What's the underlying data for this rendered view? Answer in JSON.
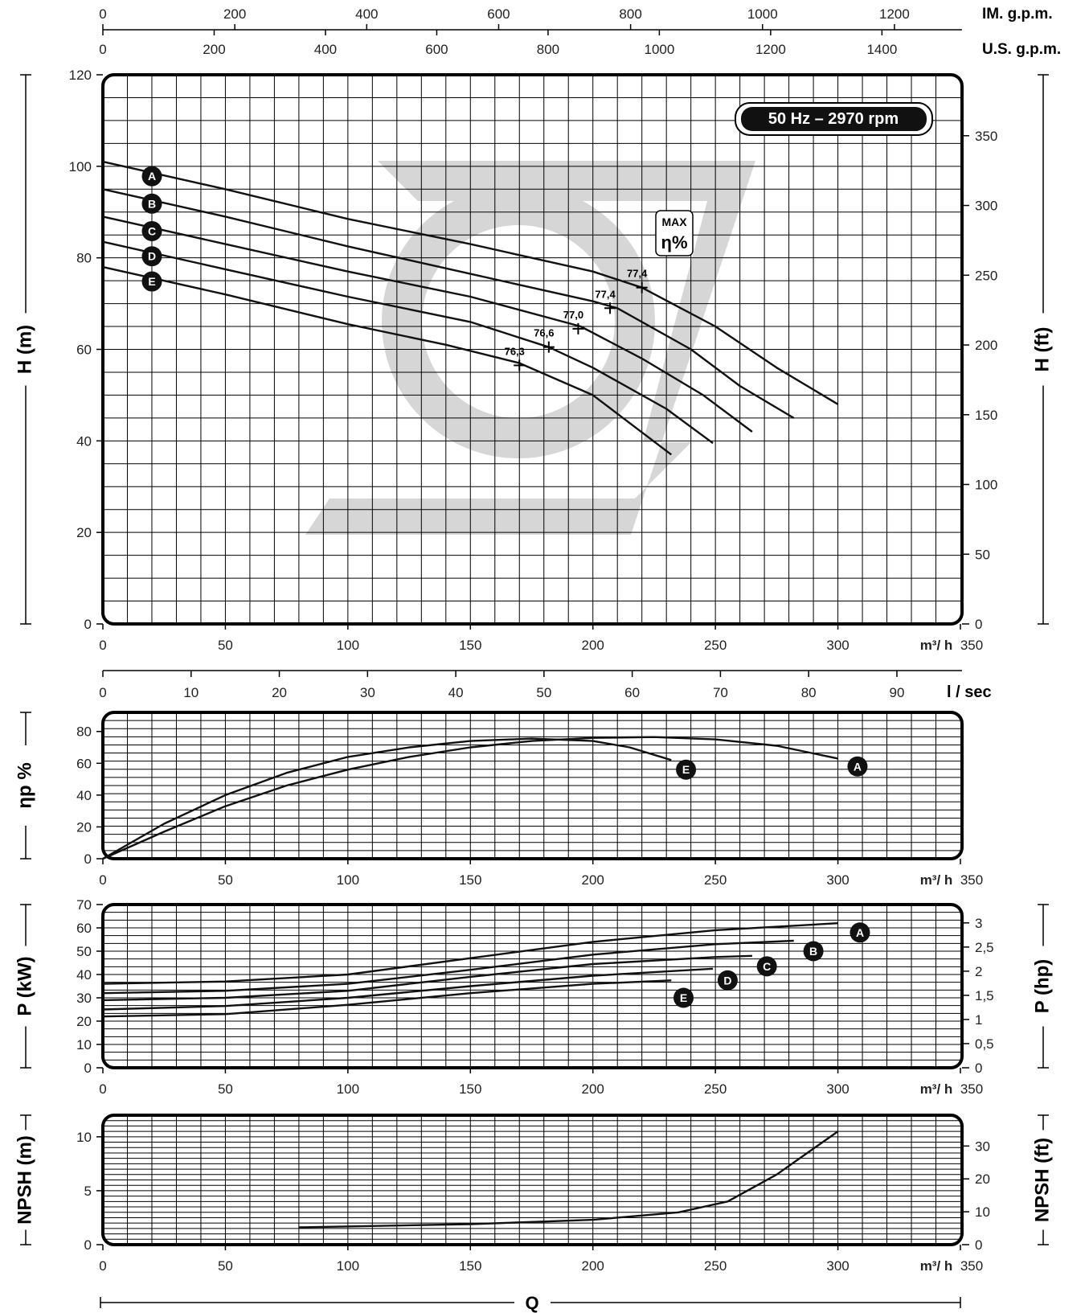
{
  "chart_data": {
    "type": "line",
    "title": "50 Hz – 2970 rpm",
    "top_scales": [
      {
        "unit": "IM. g.p.m.",
        "ticks": [
          "0",
          "200",
          "400",
          "600",
          "800",
          "1000",
          "1200"
        ],
        "values": [
          0,
          200,
          400,
          600,
          800,
          1000,
          1200
        ],
        "max": 1300
      },
      {
        "unit": "U.S. g.p.m.",
        "ticks": [
          "0",
          "200",
          "400",
          "600",
          "800",
          "1000",
          "1200",
          "1400"
        ],
        "values": [
          0,
          200,
          400,
          600,
          800,
          1000,
          1200,
          1400
        ],
        "max": 1541
      }
    ],
    "x": {
      "unit_label": "m³/ h",
      "ticks": [
        "0",
        "50",
        "100",
        "150",
        "200",
        "250",
        "300",
        "350"
      ],
      "values": [
        0,
        50,
        100,
        150,
        200,
        250,
        300,
        350
      ],
      "lim": [
        0,
        350
      ]
    },
    "lsec": {
      "unit_label": "l / sec",
      "ticks": [
        "0",
        "10",
        "20",
        "30",
        "40",
        "50",
        "60",
        "70",
        "80",
        "90"
      ],
      "values": [
        0,
        10,
        20,
        30,
        40,
        50,
        60,
        70,
        80,
        90
      ],
      "max": 97.2
    },
    "q_label": "Q",
    "head_panel": {
      "ylabel": "H (m)",
      "ylabel_right": "H (ft)",
      "ylim": [
        0,
        120
      ],
      "yticks": [
        "0",
        "20",
        "40",
        "60",
        "80",
        "100",
        "120"
      ],
      "yvalues": [
        0,
        20,
        40,
        60,
        80,
        100,
        120
      ],
      "right_ticks": [
        "0",
        "50",
        "100",
        "150",
        "200",
        "250",
        "300",
        "350"
      ],
      "right_values": [
        0,
        50,
        100,
        150,
        200,
        250,
        300,
        350
      ],
      "right_max": 393.7,
      "max_eff_label": [
        "MAX",
        "η%"
      ],
      "series": [
        {
          "name": "A",
          "x": [
            0,
            50,
            100,
            150,
            200,
            220,
            250,
            275,
            300
          ],
          "y": [
            101,
            95,
            88.5,
            83,
            77,
            73.5,
            65,
            56,
            48
          ]
        },
        {
          "name": "B",
          "x": [
            0,
            50,
            100,
            150,
            200,
            210,
            240,
            260,
            282
          ],
          "y": [
            95,
            89,
            82.5,
            76.5,
            70.5,
            69,
            60,
            52,
            45
          ]
        },
        {
          "name": "C",
          "x": [
            0,
            50,
            100,
            150,
            195,
            220,
            245,
            265
          ],
          "y": [
            89,
            83,
            77,
            71.5,
            65,
            58,
            50,
            42
          ]
        },
        {
          "name": "D",
          "x": [
            0,
            50,
            100,
            150,
            182,
            200,
            230,
            249
          ],
          "y": [
            83.5,
            77.5,
            71.5,
            66,
            60.5,
            56,
            47,
            39.5
          ]
        },
        {
          "name": "E",
          "x": [
            0,
            50,
            100,
            140,
            170,
            200,
            232
          ],
          "y": [
            78,
            72,
            65.5,
            61,
            57,
            50,
            37
          ]
        }
      ],
      "bep_points": [
        {
          "x": 220,
          "y": 73.5,
          "label": "77,4"
        },
        {
          "x": 207,
          "y": 69,
          "label": "77,4"
        },
        {
          "x": 194,
          "y": 64.5,
          "label": "77,0"
        },
        {
          "x": 182,
          "y": 60.5,
          "label": "76,6"
        },
        {
          "x": 170,
          "y": 56.5,
          "label": "76,3"
        }
      ]
    },
    "efficiency_panel": {
      "ylabel": "ηp %",
      "ylim": [
        0,
        92
      ],
      "yticks": [
        "0",
        "20",
        "40",
        "60",
        "80"
      ],
      "yvalues": [
        0,
        20,
        40,
        60,
        80
      ],
      "series": [
        {
          "name": "A",
          "x": [
            0,
            25,
            50,
            75,
            100,
            125,
            150,
            175,
            200,
            225,
            250,
            275,
            300
          ],
          "y": [
            0,
            17,
            33,
            46,
            56,
            64,
            70,
            74,
            76,
            76.5,
            75,
            71,
            63
          ]
        },
        {
          "name": "E",
          "x": [
            0,
            25,
            50,
            75,
            100,
            125,
            150,
            175,
            200,
            215,
            232
          ],
          "y": [
            0,
            22,
            40,
            54,
            64,
            70,
            74,
            75.5,
            74,
            70,
            62
          ]
        }
      ]
    },
    "power_panel": {
      "ylabel": "P (kW)",
      "ylabel_right": "P (hp)",
      "ylim": [
        0,
        70
      ],
      "yticks": [
        "0",
        "10",
        "20",
        "30",
        "40",
        "50",
        "60",
        "70"
      ],
      "yvalues": [
        0,
        10,
        20,
        30,
        40,
        50,
        60,
        70
      ],
      "right_ticks": [
        "0",
        "0,5",
        "1",
        "1,5",
        "2",
        "2,5",
        "3"
      ],
      "right_values": [
        0,
        0.5,
        1,
        1.5,
        2,
        2.5,
        3
      ],
      "right_max": 3.38,
      "series": [
        {
          "name": "A",
          "x": [
            0,
            50,
            100,
            150,
            200,
            250,
            300
          ],
          "y": [
            36,
            37,
            40,
            47,
            54,
            59,
            62
          ]
        },
        {
          "name": "B",
          "x": [
            0,
            50,
            100,
            150,
            200,
            250,
            282
          ],
          "y": [
            32,
            33,
            36,
            42,
            48.5,
            53,
            54.5
          ]
        },
        {
          "name": "C",
          "x": [
            0,
            50,
            100,
            150,
            200,
            250,
            265
          ],
          "y": [
            29,
            30,
            33,
            39,
            44.5,
            47.5,
            48
          ]
        },
        {
          "name": "D",
          "x": [
            0,
            50,
            100,
            150,
            200,
            249
          ],
          "y": [
            25,
            26.5,
            30,
            35,
            39.5,
            42.5
          ]
        },
        {
          "name": "E",
          "x": [
            0,
            50,
            100,
            150,
            200,
            232
          ],
          "y": [
            22,
            23,
            27,
            32,
            36,
            37.5
          ]
        }
      ]
    },
    "npsh_panel": {
      "ylabel": "NPSH (m)",
      "ylabel_right": "NPSH (ft)",
      "ylim": [
        0,
        12
      ],
      "yticks": [
        "0",
        "5",
        "10"
      ],
      "yvalues": [
        0,
        5,
        10
      ],
      "right_ticks": [
        "0",
        "10",
        "20",
        "30"
      ],
      "right_values": [
        0,
        10,
        20,
        30
      ],
      "right_max": 39.37,
      "series": [
        {
          "name": "",
          "x": [
            80,
            150,
            200,
            235,
            255,
            275,
            300
          ],
          "y": [
            1.6,
            1.9,
            2.3,
            3,
            4,
            6.5,
            10.5
          ]
        }
      ]
    }
  }
}
